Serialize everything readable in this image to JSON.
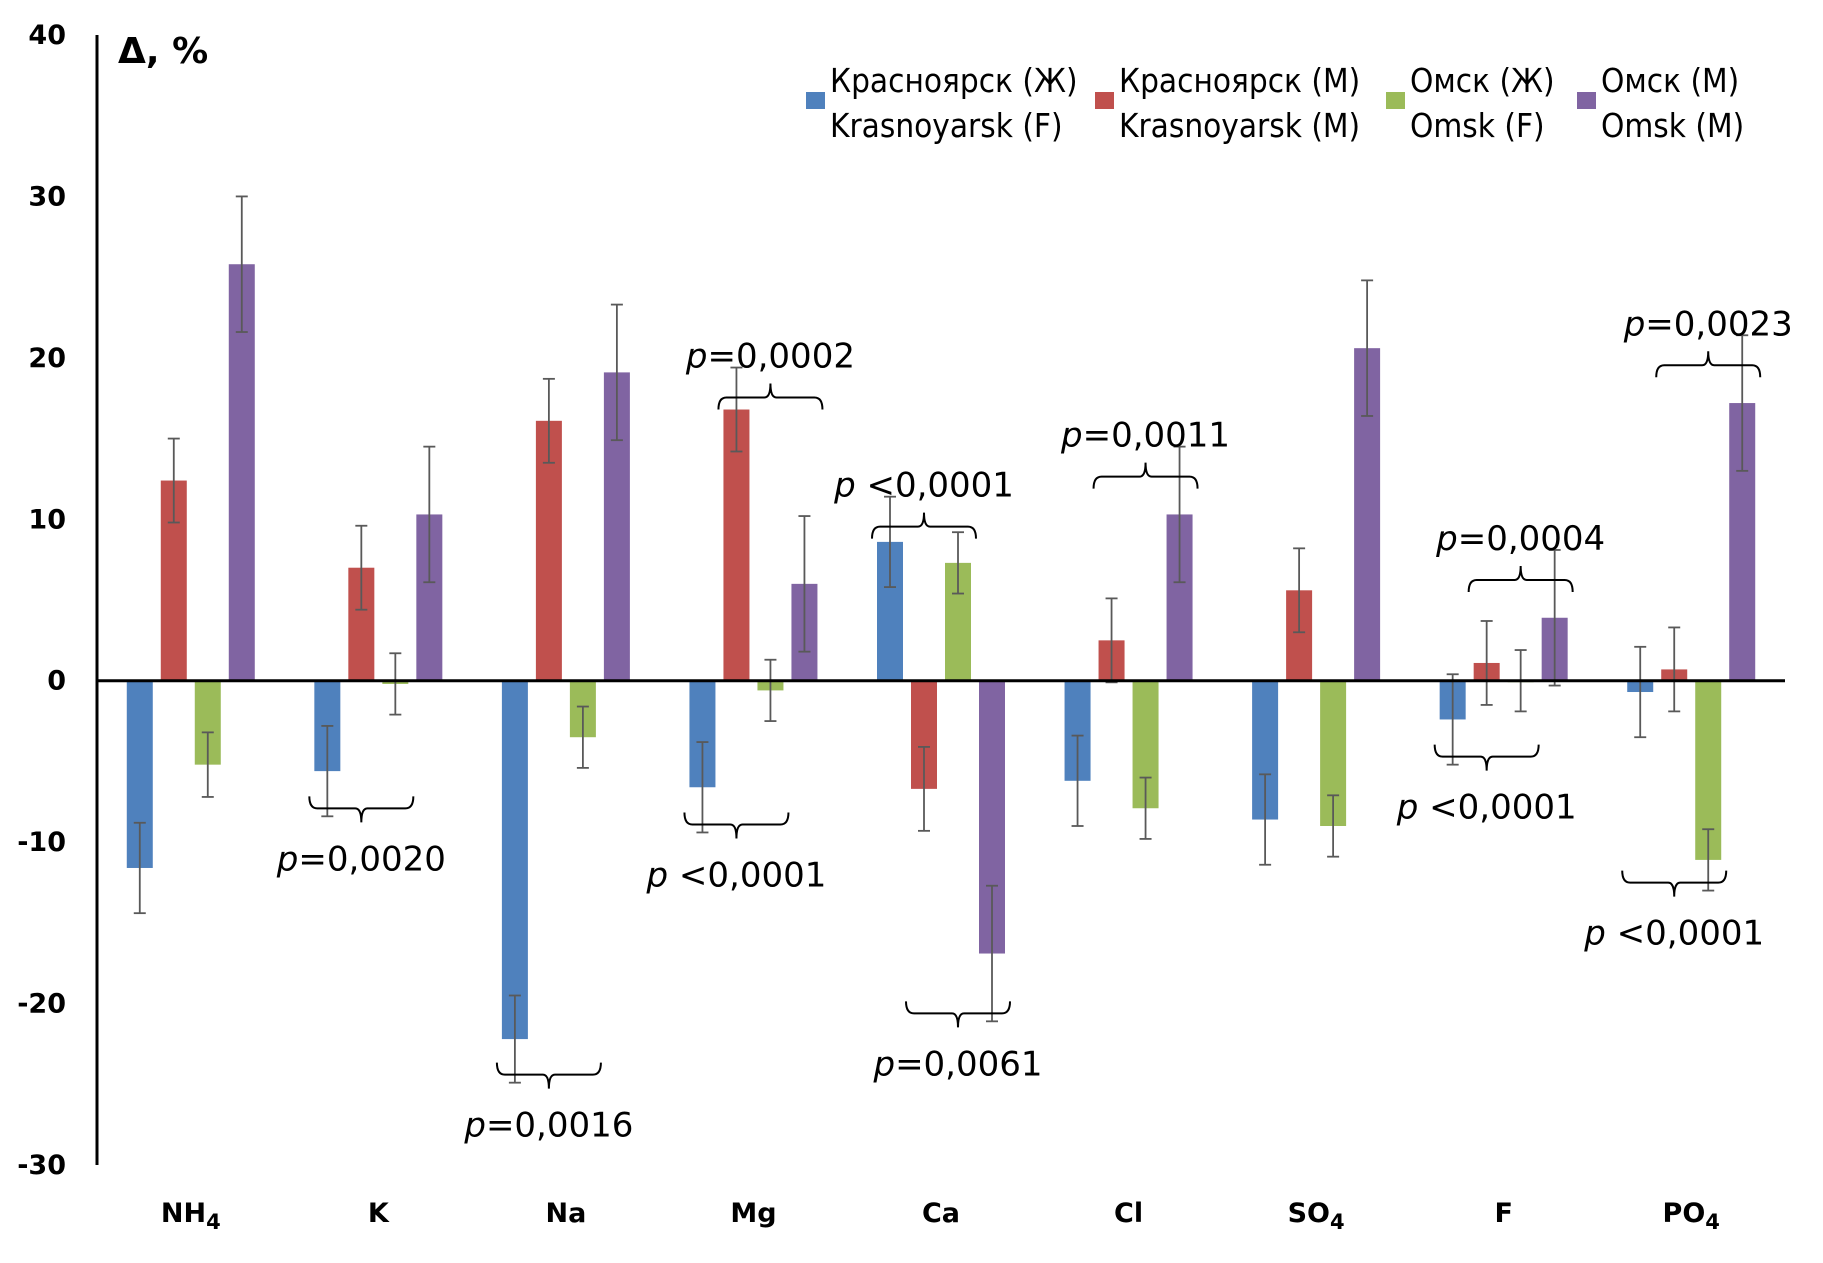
{
  "chart_data": {
    "type": "bar",
    "title": "",
    "ylabel": "Δ, %",
    "xlabel": "",
    "ylim": [
      -30,
      40
    ],
    "yticks": [
      40,
      30,
      20,
      10,
      0,
      -10,
      -20,
      -30
    ],
    "grid": false,
    "legend_position": "top-right",
    "categories": [
      "NH4",
      "K",
      "Na",
      "Mg",
      "Ca",
      "Cl",
      "SO4",
      "F",
      "PO4"
    ],
    "category_labels": [
      {
        "base": "NH",
        "sub": "4"
      },
      {
        "base": "K",
        "sub": ""
      },
      {
        "base": "Na",
        "sub": ""
      },
      {
        "base": "Mg",
        "sub": ""
      },
      {
        "base": "Ca",
        "sub": ""
      },
      {
        "base": "Cl",
        "sub": ""
      },
      {
        "base": "SO",
        "sub": "4"
      },
      {
        "base": "F",
        "sub": ""
      },
      {
        "base": "PO",
        "sub": "4"
      }
    ],
    "series": [
      {
        "name": "Красноярск (Ж) / Krasnoyarsk (F)",
        "label_ru": "Красноярск (Ж)",
        "label_en": "Krasnoyarsk (F)",
        "color": "#4f81bd",
        "values": [
          -11.6,
          -5.6,
          -22.2,
          -6.6,
          8.6,
          -6.2,
          -8.6,
          -2.4,
          -0.7
        ],
        "errors": [
          2.8,
          2.8,
          2.7,
          2.8,
          2.8,
          2.8,
          2.8,
          2.8,
          2.8
        ]
      },
      {
        "name": "Красноярск (М) / Krasnoyarsk (M)",
        "label_ru": "Красноярск (М)",
        "label_en": "Krasnoyarsk (M)",
        "color": "#c0504d",
        "values": [
          12.4,
          7.0,
          16.1,
          16.8,
          -6.7,
          2.5,
          5.6,
          1.1,
          0.7
        ],
        "errors": [
          2.6,
          2.6,
          2.6,
          2.6,
          2.6,
          2.6,
          2.6,
          2.6,
          2.6
        ]
      },
      {
        "name": "Омск (Ж) / Omsk (F)",
        "label_ru": "Омск (Ж)",
        "label_en": "Omsk (F)",
        "color": "#9bbb59",
        "values": [
          -5.2,
          -0.2,
          -3.5,
          -0.6,
          7.3,
          -7.9,
          -9.0,
          0.0,
          -11.1
        ],
        "errors": [
          2.0,
          1.9,
          1.9,
          1.9,
          1.9,
          1.9,
          1.9,
          1.9,
          1.9
        ]
      },
      {
        "name": "Омск (М) / Omsk (M)",
        "label_ru": "Омск (М)",
        "label_en": "Omsk (M)",
        "color": "#8064a2",
        "values": [
          25.8,
          10.3,
          19.1,
          6.0,
          -16.9,
          10.3,
          20.6,
          3.9,
          17.2
        ],
        "errors": [
          4.2,
          4.2,
          4.2,
          4.2,
          4.2,
          4.2,
          4.2,
          4.2,
          4.2
        ]
      }
    ],
    "annotations": [
      {
        "category": "K",
        "series": [
          0,
          2
        ],
        "side": "below",
        "p_prefix": "p",
        "p_text": "=0,0020"
      },
      {
        "category": "Na",
        "series": [
          0,
          2
        ],
        "side": "below",
        "p_prefix": "p",
        "p_text": "=0,0016"
      },
      {
        "category": "Mg",
        "series": [
          1,
          3
        ],
        "side": "above",
        "p_prefix": "p",
        "p_text": "=0,0002"
      },
      {
        "category": "Mg",
        "series": [
          0,
          2
        ],
        "side": "below",
        "p_prefix": "p",
        "p_text": " <0,0001"
      },
      {
        "category": "Ca",
        "series": [
          0,
          2
        ],
        "side": "above",
        "p_prefix": "p",
        "p_text": " <0,0001"
      },
      {
        "category": "Ca",
        "series": [
          1,
          3
        ],
        "side": "below",
        "p_prefix": "p",
        "p_text": "=0,0061"
      },
      {
        "category": "Cl",
        "series": [
          1,
          3
        ],
        "side": "above",
        "p_prefix": "p",
        "p_text": "=0,0011"
      },
      {
        "category": "F",
        "series": [
          1,
          3
        ],
        "side": "above",
        "p_prefix": "p",
        "p_text": "=0,0004"
      },
      {
        "category": "F",
        "series": [
          0,
          2
        ],
        "side": "below",
        "p_prefix": "p",
        "p_text": " <0,0001"
      },
      {
        "category": "PO4",
        "series": [
          1,
          3
        ],
        "side": "above",
        "p_prefix": "p",
        "p_text": "=0,0023"
      },
      {
        "category": "PO4",
        "series": [
          0,
          2
        ],
        "side": "below",
        "p_prefix": "p",
        "p_text": " <0,0001"
      }
    ]
  }
}
